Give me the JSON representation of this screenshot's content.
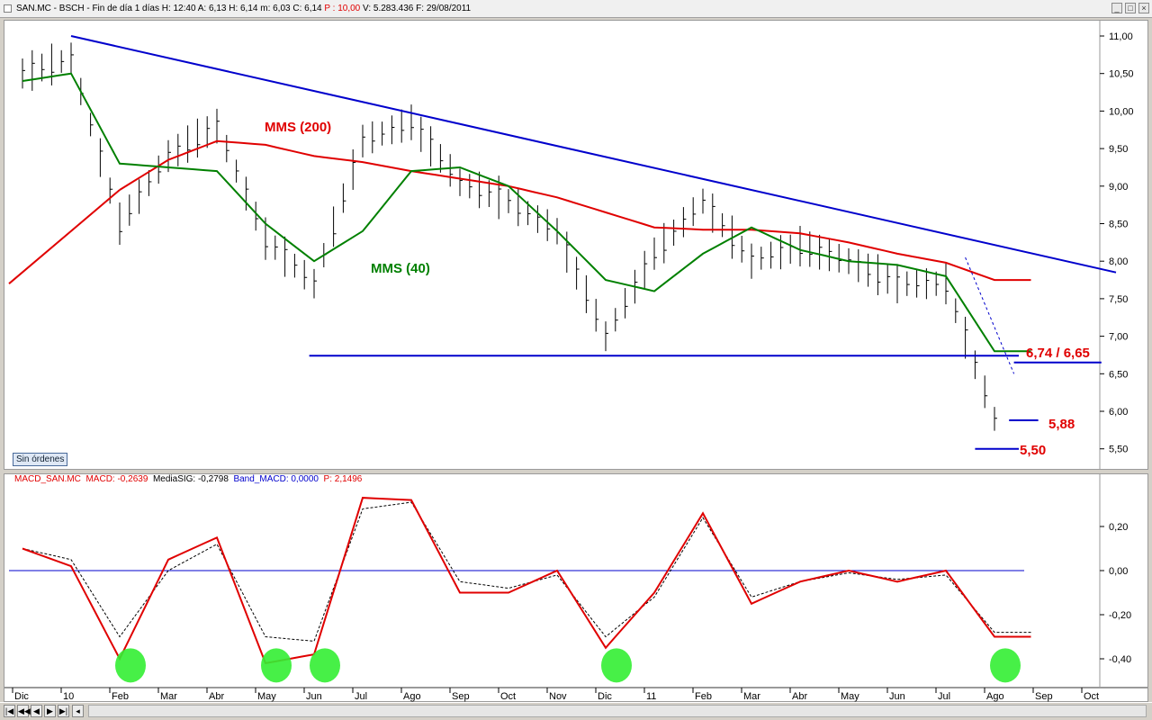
{
  "window": {
    "header": "SAN.MC - BSCH - Fin de día 1 días  H: 12:40  A: 6,13  H: 6,14  m: 6,03  C: 6,14 ",
    "header_p": "P : 10,00",
    "header_tail": "  V: 5.283.436  F: 29/08/2011"
  },
  "badge": {
    "label": "Sin órdenes"
  },
  "macd_header": {
    "name": "MACD_SAN.MC",
    "macd": "MACD: -0,2639",
    "signal": "MediaSIG: -0,2798",
    "band": "Band_MACD: 0,0000",
    "p": "P: 2,1496"
  },
  "colors": {
    "price": "#000000",
    "sma200": "#e00000",
    "sma40": "#008000",
    "trendline": "#0000cc",
    "macd": "#e00000",
    "signal": "#000000",
    "highlight": "#33ee33"
  },
  "chart_data": [
    {
      "type": "line",
      "title": "SAN.MC - BSCH",
      "x": [
        "Dic",
        "10",
        "Feb",
        "Mar",
        "Abr",
        "May",
        "Jun",
        "Jul",
        "Ago",
        "Sep",
        "Oct",
        "Nov",
        "Dic",
        "11",
        "Feb",
        "Mar",
        "Abr",
        "May",
        "Jun",
        "Jul",
        "Ago",
        "Sep",
        "Oct"
      ],
      "ylim": [
        5.5,
        11.0
      ],
      "yticks": [
        "11,00",
        "10,50",
        "10,00",
        "9,50",
        "9,00",
        "8,50",
        "8,00",
        "7,50",
        "7,00",
        "6,50",
        "6,00",
        "5,50"
      ],
      "series": [
        {
          "name": "price",
          "values": [
            10.5,
            10.7,
            8.5,
            9.4,
            9.8,
            8.3,
            7.7,
            9.6,
            9.85,
            9.05,
            8.8,
            8.4,
            7.0,
            8.1,
            8.8,
            8.0,
            8.2,
            8.0,
            7.7,
            7.7,
            5.9,
            null,
            null
          ]
        },
        {
          "name": "MMS (200)",
          "values": [
            null,
            null,
            8.95,
            9.35,
            9.6,
            9.55,
            9.4,
            9.32,
            9.2,
            9.1,
            9.0,
            8.85,
            8.65,
            8.45,
            8.42,
            8.42,
            8.37,
            8.25,
            8.1,
            7.98,
            7.75,
            null,
            null
          ]
        },
        {
          "name": "MMS (40)",
          "values": [
            10.4,
            10.5,
            9.3,
            9.25,
            9.2,
            8.5,
            8.0,
            8.4,
            9.2,
            9.25,
            9.0,
            8.4,
            7.75,
            7.6,
            8.1,
            8.45,
            8.15,
            8.0,
            7.95,
            7.8,
            6.8,
            null,
            null
          ]
        }
      ],
      "annotations": [
        "MMS (200)",
        "MMS (40)",
        "6,74 / 6,65",
        "5,88",
        "5,50"
      ],
      "levels": [
        6.74,
        6.65,
        5.88,
        5.5
      ],
      "trendline": [
        [
          1,
          11.0
        ],
        [
          22.5,
          7.85
        ]
      ]
    },
    {
      "type": "line",
      "title": "MACD_SAN.MC",
      "x": [
        "Dic",
        "10",
        "Feb",
        "Mar",
        "Abr",
        "May",
        "Jun",
        "Jul",
        "Ago",
        "Sep",
        "Oct",
        "Nov",
        "Dic",
        "11",
        "Feb",
        "Mar",
        "Abr",
        "May",
        "Jun",
        "Jul",
        "Ago",
        "Sep",
        "Oct"
      ],
      "ylim": [
        -0.5,
        0.36
      ],
      "yticks": [
        "0,20",
        "0,00",
        "-0,20",
        "-0,40"
      ],
      "series": [
        {
          "name": "MACD",
          "values": [
            0.1,
            0.02,
            -0.4,
            0.05,
            0.15,
            -0.42,
            -0.38,
            0.33,
            0.32,
            -0.1,
            -0.1,
            0.0,
            -0.35,
            -0.1,
            0.26,
            -0.15,
            -0.05,
            0.0,
            -0.05,
            0.0,
            -0.3,
            null,
            null
          ]
        },
        {
          "name": "MediaSIG",
          "values": [
            0.1,
            0.05,
            -0.3,
            0.0,
            0.12,
            -0.3,
            -0.32,
            0.28,
            0.31,
            -0.05,
            -0.08,
            -0.02,
            -0.3,
            -0.12,
            0.24,
            -0.12,
            -0.05,
            -0.01,
            -0.04,
            -0.02,
            -0.28,
            null,
            null
          ]
        },
        {
          "name": "Band_MACD",
          "values": [
            0,
            0,
            0,
            0,
            0,
            0,
            0,
            0,
            0,
            0,
            0,
            0,
            0,
            0,
            0,
            0,
            0,
            0,
            0,
            0,
            0,
            null,
            null
          ]
        }
      ],
      "highlighted_lows": [
        "Feb",
        "May",
        "Jun",
        "Dic",
        "Ago"
      ]
    }
  ]
}
